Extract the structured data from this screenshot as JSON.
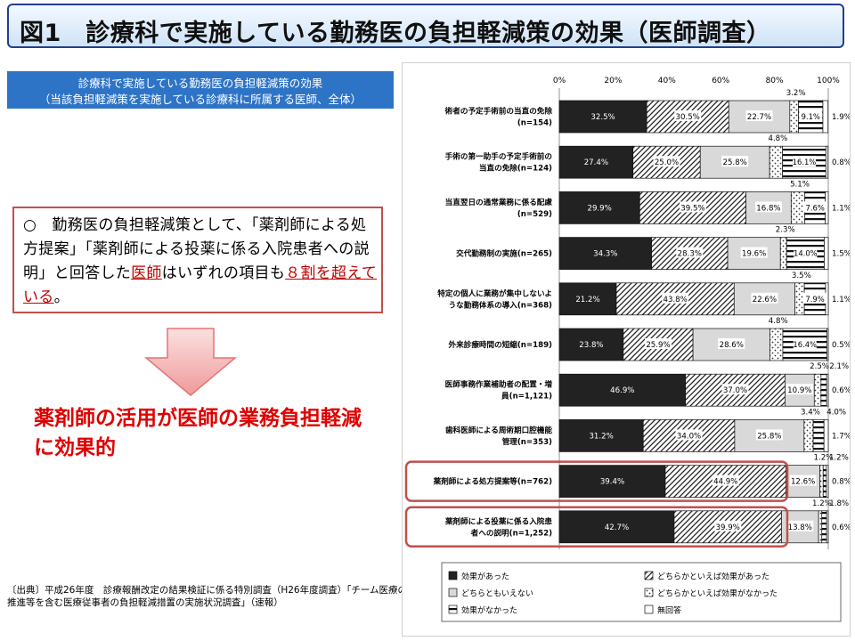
{
  "title": "図1　診療科で実施している勤務医の負担軽減策の効果（医師調査）",
  "subtitle": {
    "line1": "診療科で実施している勤務医の負担軽減策の効果",
    "line2": "（当該負担軽減策を実施している診療科に所属する医師、全体）"
  },
  "note": {
    "before": "○　勤務医の負担軽減策として、「薬剤師による処方提案」「薬剤師による投薬に係る入院患者への説明」と回答した",
    "doctor": "医師",
    "middle": "はいずれの項目も",
    "over80": "８割を超えている",
    "end": "。"
  },
  "conclusion": "薬剤師の活用が医師の業務負担軽減に効果的",
  "source": "〔出典〕平成26年度　診療報酬改定の結果検証に係る特別調査（H26年度調査）「チーム医療の推進等を含む医療従事者の負担軽減措置の実施状況調査」（速報）",
  "colors": {
    "title_border": "#1f3f8f",
    "banner": "#2e74c6",
    "highlight": "#c0504d",
    "emphasis": "#e00000"
  },
  "chart_data": {
    "type": "bar",
    "orientation": "horizontal",
    "stacked": true,
    "unit": "%",
    "xlim": [
      0,
      100
    ],
    "xticks": [
      "0%",
      "20%",
      "40%",
      "60%",
      "80%",
      "100%"
    ],
    "categories": [
      [
        "術者の予定手術前の当直の免除",
        "(n=154)"
      ],
      [
        "手術の第一助手の予定手術前の",
        "当直の免除(n=124)"
      ],
      [
        "当直翌日の通常業務に係る配慮",
        "(n=529)"
      ],
      [
        "交代勤務制の実施(n=265)"
      ],
      [
        "特定の個人に業務が集中しないよ",
        "うな勤務体系の導入(n=368)"
      ],
      [
        "外来診療時間の短縮(n=189)"
      ],
      [
        "医師事務作業補助者の配置・増",
        "員(n=1,121)"
      ],
      [
        "歯科医師による周術期口腔機能",
        "管理(n=353)"
      ],
      [
        "薬剤師による処方提案等(n=762)"
      ],
      [
        "薬剤師による投薬に係る入院患",
        "者への説明(n=1,252)"
      ]
    ],
    "series": [
      {
        "name": "効果があった",
        "values": [
          32.5,
          27.4,
          29.9,
          34.3,
          21.2,
          23.8,
          46.9,
          31.2,
          39.4,
          42.7
        ]
      },
      {
        "name": "どちらかといえば効果があった",
        "values": [
          30.5,
          25.0,
          39.5,
          28.3,
          43.8,
          25.9,
          37.0,
          34.0,
          44.9,
          39.9
        ]
      },
      {
        "name": "どちらともいえない",
        "values": [
          22.7,
          25.8,
          16.8,
          19.6,
          22.6,
          28.6,
          10.9,
          25.8,
          12.6,
          13.8
        ]
      },
      {
        "name": "どちらかといえば効果がなかった",
        "values": [
          3.2,
          4.8,
          5.1,
          2.3,
          3.5,
          4.8,
          2.5,
          3.4,
          1.2,
          1.2
        ]
      },
      {
        "name": "効果がなかった",
        "values": [
          9.1,
          16.1,
          7.6,
          14.0,
          7.9,
          16.4,
          2.1,
          4.0,
          1.2,
          1.8
        ]
      },
      {
        "name": "無回答",
        "values": [
          1.9,
          0.8,
          1.1,
          1.5,
          1.1,
          0.5,
          0.6,
          1.7,
          0.8,
          0.6
        ]
      }
    ],
    "highlighted_categories": [
      8,
      9
    ],
    "legend_position": "bottom"
  }
}
